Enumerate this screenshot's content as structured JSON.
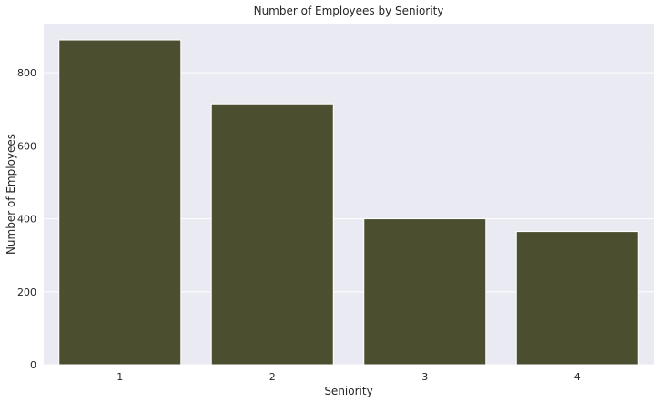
{
  "chart_data": {
    "type": "bar",
    "title": "Number of Employees by Seniority",
    "xlabel": "Seniority",
    "ylabel": "Number of Employees",
    "categories": [
      "1",
      "2",
      "3",
      "4"
    ],
    "values": [
      890,
      715,
      400,
      365
    ],
    "ylim": [
      0,
      935
    ],
    "yticks": [
      0,
      200,
      400,
      600,
      800
    ],
    "ytick_labels": [
      "0",
      "200",
      "400",
      "600",
      "800"
    ],
    "grid": true,
    "legend": "none",
    "colors": {
      "bar": "#4b4e2f",
      "background": "#eaeaf2",
      "grid": "#ffffff",
      "text": "#262626"
    }
  }
}
